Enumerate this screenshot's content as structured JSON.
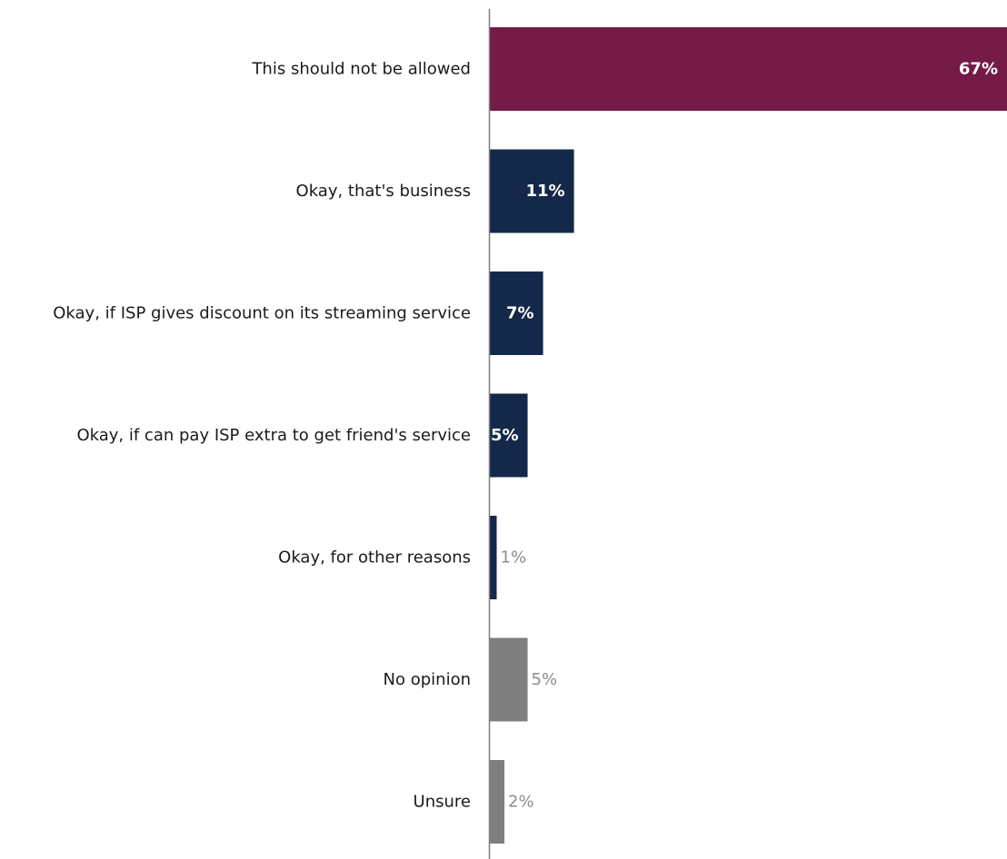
{
  "chart_data": {
    "type": "bar",
    "orientation": "horizontal",
    "title": "",
    "xlabel": "",
    "ylabel": "",
    "grid": false,
    "legend": "none",
    "xlim": [
      0,
      67
    ],
    "categories": [
      "This should not be allowed",
      "Okay, that's business",
      "Okay, if ISP gives discount on its streaming service",
      "Okay, if can pay ISP extra to get friend's service",
      "Okay, for other reasons",
      "No opinion",
      "Unsure"
    ],
    "values": [
      67,
      11,
      7,
      5,
      1,
      5,
      2
    ],
    "value_labels": [
      "67%",
      "11%",
      "7%",
      "5%",
      "1%",
      "5%",
      "2%"
    ],
    "bar_colors": [
      "#741b45",
      "#14294a",
      "#14294a",
      "#14294a",
      "#14294a",
      "#7f7f7f",
      "#7f7f7f"
    ],
    "label_colors": [
      "#ffffff",
      "#ffffff",
      "#ffffff",
      "#ffffff",
      "#8c8c8c",
      "#8c8c8c",
      "#8c8c8c"
    ],
    "label_inside": [
      true,
      true,
      true,
      true,
      false,
      false,
      false
    ],
    "label_bold": [
      true,
      true,
      true,
      true,
      false,
      false,
      false
    ]
  }
}
